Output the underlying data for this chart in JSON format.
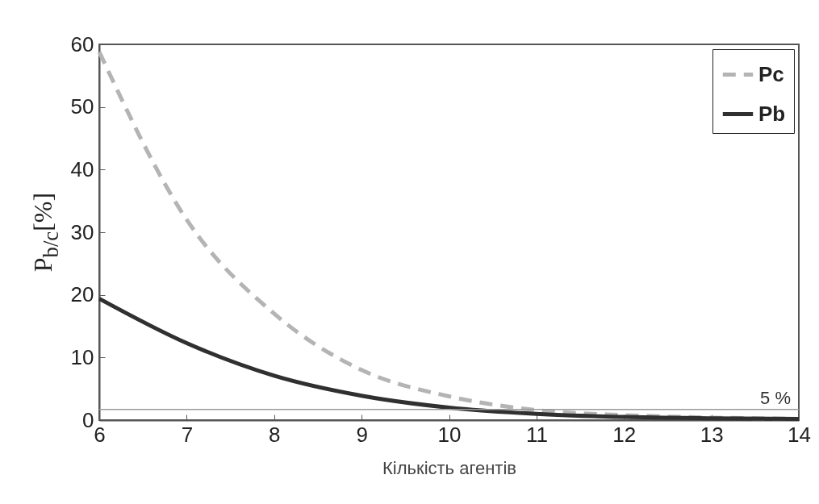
{
  "chart_data": {
    "type": "line",
    "xlabel": "Кількість агентів",
    "ylabel": "P$_{b/c}$[%]",
    "x": [
      6,
      7,
      8,
      9,
      10,
      11,
      12,
      13,
      14
    ],
    "series": [
      {
        "name": "Pc",
        "color": "#b4b4b4",
        "line_style": "dashed",
        "values": [
          58.8,
          32,
          17,
          8,
          3.8,
          1.6,
          0.8,
          0.4,
          0.2
        ]
      },
      {
        "name": "Pb",
        "color": "#303030",
        "line_style": "solid",
        "values": [
          19.4,
          12.3,
          7.1,
          3.9,
          2.0,
          1.0,
          0.5,
          0.3,
          0.2
        ]
      }
    ],
    "xlim": [
      6,
      14
    ],
    "xticks": [
      6,
      7,
      8,
      9,
      10,
      11,
      12,
      13,
      14
    ],
    "ylim": [
      0,
      60
    ],
    "yticks": [
      0,
      10,
      20,
      30,
      40,
      50,
      60
    ],
    "ref_lines": [
      {
        "axis": "y",
        "value": 1.7,
        "color": "#9a9a9a"
      }
    ],
    "annotations": [
      "5 %"
    ],
    "grid": false,
    "legend": "top right",
    "marker": "none"
  }
}
